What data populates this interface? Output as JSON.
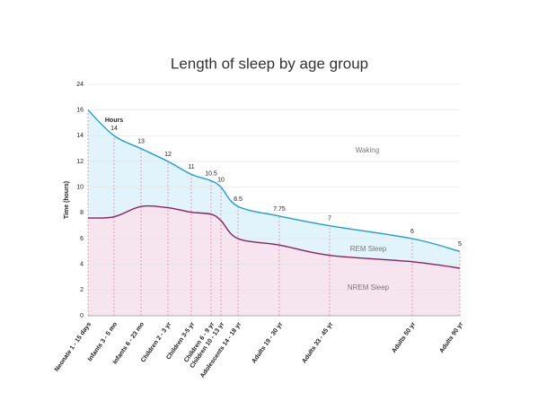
{
  "chart_data": {
    "type": "line",
    "title": "Length of sleep by age group",
    "y_label": "Time (hours)",
    "categories": [
      "Neonate 1 - 15 days",
      "Infants 3 - 5 mo",
      "Infants 6 - 23 mo",
      "Children 2 - 3 yr",
      "Children 3-5 yr",
      "Children 6 - 9 yr",
      "Children 10 - 13 yr",
      "Adolescents 14 - 18 yr",
      "Adults 19 - 30 yr",
      "Adults 33 - 45 yr",
      "Adults 50 yr",
      "Adults 90 yr"
    ],
    "series": [
      {
        "name": "Hours",
        "color": "#1a9fd0",
        "fill": "#e2f4fb",
        "values": [
          16,
          14,
          13,
          12,
          11,
          10.5,
          10,
          8.5,
          7.75,
          7,
          6,
          5
        ],
        "value_labels": [
          null,
          "14",
          "13",
          "12",
          "11",
          "10.5",
          "10",
          "8.5",
          "7.75",
          "7",
          "6",
          "5"
        ]
      },
      {
        "name": "NREM Sleep",
        "color": "#8b1f5f",
        "fill": "#f6e5ef",
        "values": [
          7.6,
          7.7,
          8.5,
          8.4,
          8.05,
          7.9,
          7.4,
          6.0,
          5.5,
          4.7,
          4.2,
          3.7
        ]
      }
    ],
    "annotations": [
      "Waking",
      "REM Sleep"
    ],
    "ylim": [
      0,
      24
    ],
    "yticks": [
      0,
      2,
      4,
      6,
      8,
      10,
      12,
      14,
      16,
      24
    ],
    "grid": true
  }
}
